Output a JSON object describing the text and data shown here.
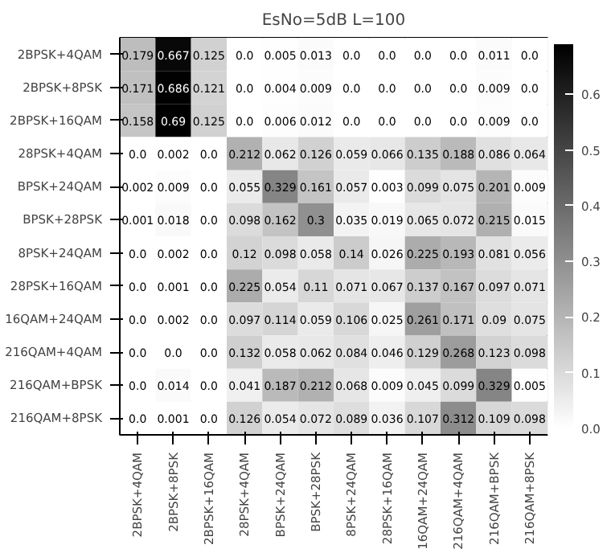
{
  "chart_data": {
    "type": "heatmap",
    "title": "EsNo=5dB L=100",
    "categories": [
      "2BPSK+4QAM",
      "2BPSK+8PSK",
      "2BPSK+16QAM",
      "28PSK+4QAM",
      "BPSK+24QAM",
      "BPSK+28PSK",
      "8PSK+24QAM",
      "28PSK+16QAM",
      "16QAM+24QAM",
      "216QAM+4QAM",
      "216QAM+BPSK",
      "216QAM+8PSK"
    ],
    "y_categories": [
      "2BPSK+4QAM",
      "2BPSK+8PSK",
      "2BPSK+16QAM",
      "28PSK+4QAM",
      "BPSK+24QAM",
      "BPSK+28PSK",
      "8PSK+24QAM",
      "28PSK+16QAM",
      "16QAM+24QAM",
      "216QAM+4QAM",
      "216QAM+BPSK",
      "216QAM+8PSK"
    ],
    "cells": [
      [
        0.179,
        0.667,
        0.125,
        0.0,
        0.005,
        0.013,
        0.0,
        0.0,
        0.0,
        0.0,
        0.011,
        0.0
      ],
      [
        0.171,
        0.686,
        0.121,
        0.0,
        0.004,
        0.009,
        0.0,
        0.0,
        0.0,
        0.0,
        0.009,
        0.0
      ],
      [
        0.158,
        0.69,
        0.125,
        0.0,
        0.006,
        0.012,
        0.0,
        0.0,
        0.0,
        0.0,
        0.009,
        0.0
      ],
      [
        0.0,
        0.002,
        0.0,
        0.212,
        0.062,
        0.126,
        0.059,
        0.066,
        0.135,
        0.188,
        0.086,
        0.064
      ],
      [
        0.002,
        0.009,
        0.0,
        0.055,
        0.329,
        0.161,
        0.057,
        0.003,
        0.099,
        0.075,
        0.201,
        0.009
      ],
      [
        0.001,
        0.018,
        0.0,
        0.098,
        0.162,
        0.3,
        0.035,
        0.019,
        0.065,
        0.072,
        0.215,
        0.015
      ],
      [
        0.0,
        0.002,
        0.0,
        0.12,
        0.098,
        0.058,
        0.14,
        0.026,
        0.225,
        0.193,
        0.081,
        0.056
      ],
      [
        0.0,
        0.001,
        0.0,
        0.225,
        0.054,
        0.11,
        0.071,
        0.067,
        0.137,
        0.167,
        0.097,
        0.071
      ],
      [
        0.0,
        0.002,
        0.0,
        0.097,
        0.114,
        0.059,
        0.106,
        0.025,
        0.261,
        0.171,
        0.09,
        0.075
      ],
      [
        0.0,
        0.0,
        0.0,
        0.132,
        0.058,
        0.062,
        0.084,
        0.046,
        0.129,
        0.268,
        0.123,
        0.098
      ],
      [
        0.0,
        0.014,
        0.0,
        0.041,
        0.187,
        0.212,
        0.068,
        0.009,
        0.045,
        0.099,
        0.329,
        0.005
      ],
      [
        0.0,
        0.001,
        0.0,
        0.126,
        0.054,
        0.072,
        0.089,
        0.036,
        0.107,
        0.312,
        0.109,
        0.098
      ]
    ],
    "cell_labels": [
      [
        "0.179",
        "0.667",
        "0.125",
        "0.0",
        "0.005",
        "0.013",
        "0.0",
        "0.0",
        "0.0",
        "0.0",
        "0.011",
        "0.0"
      ],
      [
        "0.171",
        "0.686",
        "0.121",
        "0.0",
        "0.004",
        "0.009",
        "0.0",
        "0.0",
        "0.0",
        "0.0",
        "0.009",
        "0.0"
      ],
      [
        "0.158",
        "0.69",
        "0.125",
        "0.0",
        "0.006",
        "0.012",
        "0.0",
        "0.0",
        "0.0",
        "0.0",
        "0.009",
        "0.0"
      ],
      [
        "0.0",
        "0.002",
        "0.0",
        "0.212",
        "0.062",
        "0.126",
        "0.059",
        "0.066",
        "0.135",
        "0.188",
        "0.086",
        "0.064"
      ],
      [
        "0.002",
        "0.009",
        "0.0",
        "0.055",
        "0.329",
        "0.161",
        "0.057",
        "0.003",
        "0.099",
        "0.075",
        "0.201",
        "0.009"
      ],
      [
        "0.001",
        "0.018",
        "0.0",
        "0.098",
        "0.162",
        "0.3",
        "0.035",
        "0.019",
        "0.065",
        "0.072",
        "0.215",
        "0.015"
      ],
      [
        "0.0",
        "0.002",
        "0.0",
        "0.12",
        "0.098",
        "0.058",
        "0.14",
        "0.026",
        "0.225",
        "0.193",
        "0.081",
        "0.056"
      ],
      [
        "0.0",
        "0.001",
        "0.0",
        "0.225",
        "0.054",
        "0.11",
        "0.071",
        "0.067",
        "0.137",
        "0.167",
        "0.097",
        "0.071"
      ],
      [
        "0.0",
        "0.002",
        "0.0",
        "0.097",
        "0.114",
        "0.059",
        "0.106",
        "0.025",
        "0.261",
        "0.171",
        "0.09",
        "0.075"
      ],
      [
        "0.0",
        "0.0",
        "0.0",
        "0.132",
        "0.058",
        "0.062",
        "0.084",
        "0.046",
        "0.129",
        "0.268",
        "0.123",
        "0.098"
      ],
      [
        "0.0",
        "0.014",
        "0.0",
        "0.041",
        "0.187",
        "0.212",
        "0.068",
        "0.009",
        "0.045",
        "0.099",
        "0.329",
        "0.005"
      ],
      [
        "0.0",
        "0.001",
        "0.0",
        "0.126",
        "0.054",
        "0.072",
        "0.089",
        "0.036",
        "0.107",
        "0.312",
        "0.109",
        "0.098"
      ]
    ],
    "data_labels": true,
    "clim": [
      0,
      0.69
    ],
    "cticks": [
      {
        "value": 0,
        "label": "0.0"
      },
      0.1,
      0.2,
      0.3,
      0.4,
      0.5,
      0.6
    ]
  }
}
